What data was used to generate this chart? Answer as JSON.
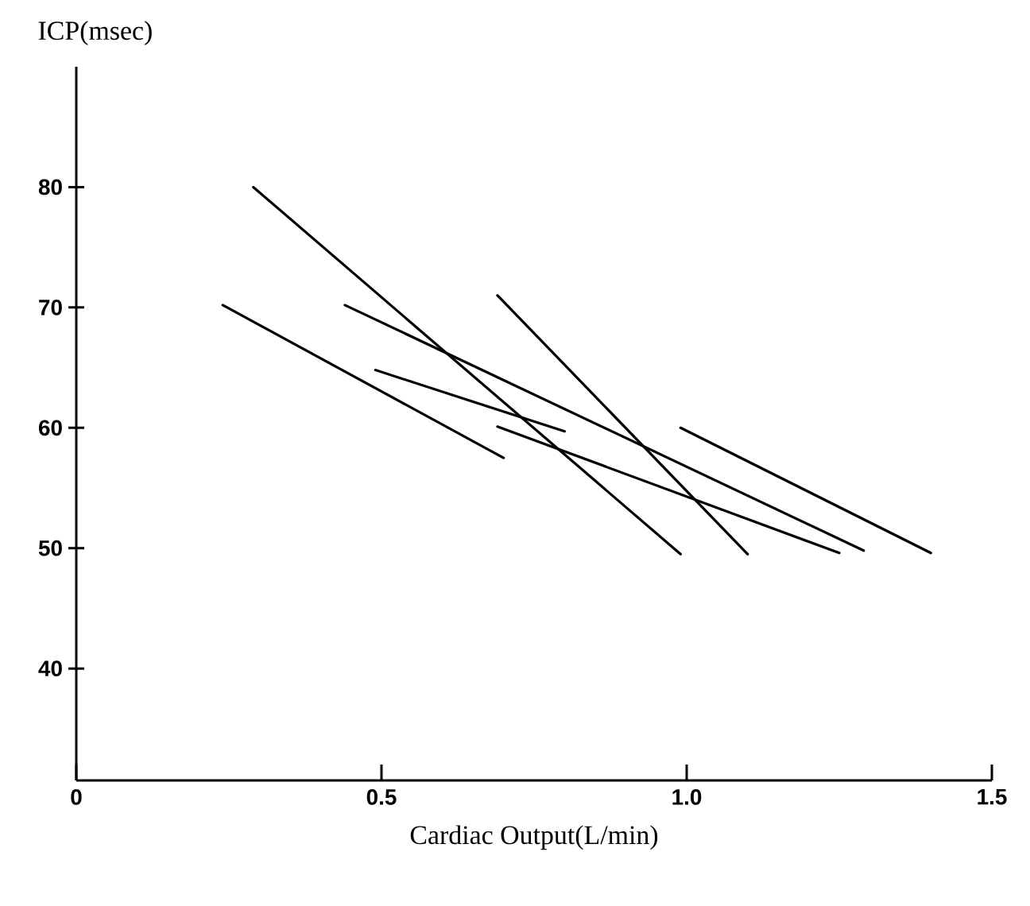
{
  "chart_data": {
    "type": "line",
    "xlabel": "Cardiac Output(L/min)",
    "ylabel": "ICP(msec)",
    "xlim": [
      0,
      1.5
    ],
    "ylim": [
      30.7,
      90
    ],
    "xticks": [
      0,
      {
        "value": 0.5,
        "label": "0.5"
      },
      {
        "value": 1.0,
        "label": "1.0"
      },
      {
        "value": 1.5,
        "label": "1.5"
      }
    ],
    "yticks": [
      40,
      50,
      60,
      70,
      80
    ],
    "marker": "none",
    "line_style": "solid",
    "series": [
      {
        "color": "#000000",
        "x": [
          0.29,
          0.99
        ],
        "values": [
          80,
          49.5
        ]
      },
      {
        "color": "#000000",
        "x": [
          0.24,
          0.7
        ],
        "values": [
          70.2,
          57.5
        ]
      },
      {
        "color": "#000000",
        "x": [
          0.44,
          1.29
        ],
        "values": [
          70.2,
          49.8
        ]
      },
      {
        "color": "#000000",
        "x": [
          0.69,
          1.1
        ],
        "values": [
          71.0,
          49.5
        ]
      },
      {
        "color": "#000000",
        "x": [
          0.49,
          0.8
        ],
        "values": [
          64.8,
          59.7
        ]
      },
      {
        "color": "#000000",
        "x": [
          0.69,
          1.25
        ],
        "values": [
          60.1,
          49.6
        ]
      },
      {
        "color": "#000000",
        "x": [
          0.99,
          1.4
        ],
        "values": [
          60.0,
          49.6
        ]
      }
    ]
  }
}
